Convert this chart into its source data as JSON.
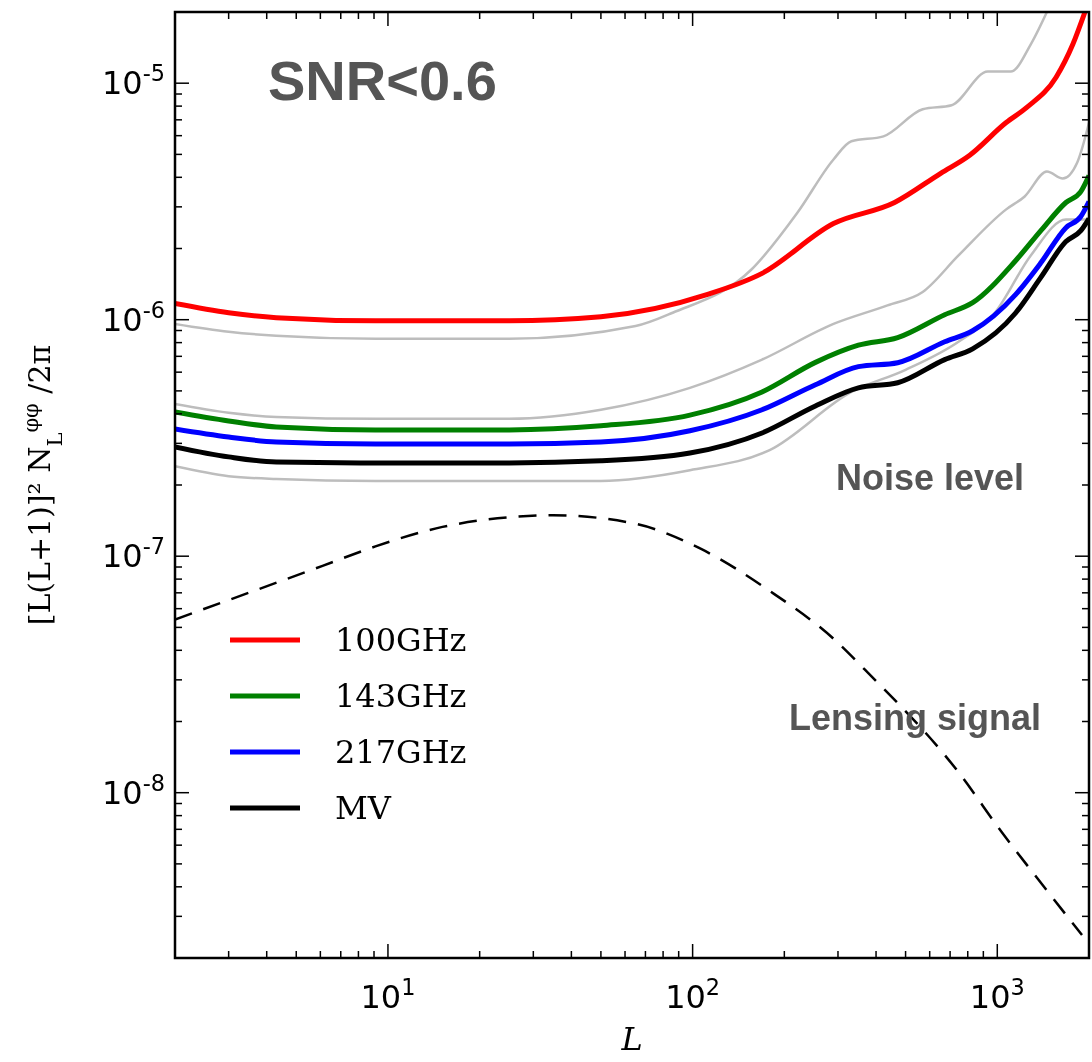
{
  "chart_data": {
    "type": "line",
    "title": "SNR<0.6",
    "xlabel": "L",
    "ylabel": "[L(L+1)]² N$_{L}$$^{φφ}$ /2π",
    "log": "xy",
    "legend": "bottom left",
    "grid": false,
    "marker": "none",
    "xlim": [
      2,
      2000
    ],
    "ylim": [
      2e-09,
      2e-05
    ],
    "xticks": [
      {
        "value": 2,
        "label": null
      },
      {
        "value": 3,
        "label": null
      },
      {
        "value": 4,
        "label": null
      },
      {
        "value": 5,
        "label": null
      },
      {
        "value": 6,
        "label": null
      },
      {
        "value": 7,
        "label": null
      },
      {
        "value": 8,
        "label": null
      },
      {
        "value": 9,
        "label": null
      },
      {
        "value": 10,
        "label": "10$^{1}$"
      },
      {
        "value": 20,
        "label": null
      },
      {
        "value": 30,
        "label": null
      },
      {
        "value": 40,
        "label": null
      },
      {
        "value": 50,
        "label": null
      },
      {
        "value": 60,
        "label": null
      },
      {
        "value": 70,
        "label": null
      },
      {
        "value": 80,
        "label": null
      },
      {
        "value": 90,
        "label": null
      },
      {
        "value": 100,
        "label": "10$^{2}$"
      },
      {
        "value": 200,
        "label": null
      },
      {
        "value": 300,
        "label": null
      },
      {
        "value": 400,
        "label": null
      },
      {
        "value": 500,
        "label": null
      },
      {
        "value": 600,
        "label": null
      },
      {
        "value": 700,
        "label": null
      },
      {
        "value": 800,
        "label": null
      },
      {
        "value": 900,
        "label": null
      },
      {
        "value": 1000,
        "label": "10$^{3}$"
      }
    ],
    "yticks": [
      {
        "value": 3e-09,
        "label": null
      },
      {
        "value": 4e-09,
        "label": null
      },
      {
        "value": 5e-09,
        "label": null
      },
      {
        "value": 6e-09,
        "label": null
      },
      {
        "value": 7e-09,
        "label": null
      },
      {
        "value": 8e-09,
        "label": null
      },
      {
        "value": 9e-09,
        "label": null
      },
      {
        "value": 1e-08,
        "label": "10$^{-8}$"
      },
      {
        "value": 2e-08,
        "label": null
      },
      {
        "value": 3e-08,
        "label": null
      },
      {
        "value": 4e-08,
        "label": null
      },
      {
        "value": 5e-08,
        "label": null
      },
      {
        "value": 6e-08,
        "label": null
      },
      {
        "value": 7e-08,
        "label": null
      },
      {
        "value": 8e-08,
        "label": null
      },
      {
        "value": 9e-08,
        "label": null
      },
      {
        "value": 1e-07,
        "label": "10$^{-7}$"
      },
      {
        "value": 2e-07,
        "label": null
      },
      {
        "value": 3e-07,
        "label": null
      },
      {
        "value": 4e-07,
        "label": null
      },
      {
        "value": 5e-07,
        "label": null
      },
      {
        "value": 6e-07,
        "label": null
      },
      {
        "value": 7e-07,
        "label": null
      },
      {
        "value": 8e-07,
        "label": null
      },
      {
        "value": 9e-07,
        "label": null
      },
      {
        "value": 1e-06,
        "label": "10$^{-6}$"
      },
      {
        "value": 2e-06,
        "label": null
      },
      {
        "value": 3e-06,
        "label": null
      },
      {
        "value": 4e-06,
        "label": null
      },
      {
        "value": 5e-06,
        "label": null
      },
      {
        "value": 6e-06,
        "label": null
      },
      {
        "value": 7e-06,
        "label": null
      },
      {
        "value": 8e-06,
        "label": null
      },
      {
        "value": 9e-06,
        "label": null
      },
      {
        "value": 1e-05,
        "label": "10$^{-5}$"
      }
    ],
    "annotations": [
      "Noise level",
      "Lensing signal"
    ],
    "series": [
      {
        "color": "#bdbdbd",
        "x": [
          2,
          3,
          4.3,
          9.1,
          25,
          65,
          86,
          156,
          221,
          290,
          332,
          423,
          569,
          708,
          931,
          1107,
          1288,
          1455
        ],
        "values": [
          9.6e-07,
          8.9e-07,
          8.55e-07,
          8.3e-07,
          8.3e-07,
          9.4e-07,
          1.07e-06,
          1.63e-06,
          2.84e-06,
          4.76e-06,
          5.68e-06,
          5.96e-06,
          7.76e-06,
          8.07e-06,
          1.12e-05,
          1.12e-05,
          1.46e-05,
          2e-05
        ]
      },
      {
        "color": "#bdbdbd",
        "x": [
          2,
          3,
          4.3,
          9.1,
          25,
          50,
          98,
          169,
          290,
          436,
          569,
          746,
          1067,
          1230,
          1455,
          1640,
          1830,
          2000
        ],
        "values": [
          4.4e-07,
          4.04e-07,
          3.88e-07,
          3.81e-07,
          3.81e-07,
          4.16e-07,
          5.15e-07,
          6.78e-07,
          9.6e-07,
          1.15e-06,
          1.31e-06,
          1.87e-06,
          2.92e-06,
          3.32e-06,
          4.23e-06,
          3.95e-06,
          4.62e-06,
          6.8e-06
        ]
      },
      {
        "color": "#bdbdbd",
        "x": [
          2,
          3,
          4.3,
          9.1,
          25,
          50,
          98,
          179,
          332,
          500,
          746,
          982,
          1288,
          1680,
          2000
        ],
        "values": [
          2.4e-07,
          2.18e-07,
          2.12e-07,
          2.08e-07,
          2.08e-07,
          2.08e-07,
          2.31e-07,
          2.81e-07,
          4.95e-07,
          6.14e-07,
          8.07e-07,
          1.07e-06,
          1.87e-06,
          2.65e-06,
          2.65e-06
        ]
      },
      {
        "name": "100GHz",
        "color": "#ff0000",
        "x": [
          2,
          3,
          4.3,
          9.1,
          25,
          50,
          112,
          169,
          290,
          460,
          652,
          812,
          1067,
          1250,
          1560,
          1770,
          1940
        ],
        "values": [
          1.17e-06,
          1.07e-06,
          1.02e-06,
          9.9e-07,
          9.9e-07,
          1.03e-06,
          1.28e-06,
          1.57e-06,
          2.55e-06,
          3.13e-06,
          4.16e-06,
          4.96e-06,
          6.8e-06,
          7.9e-06,
          1.06e-05,
          1.46e-05,
          2e-05
        ]
      },
      {
        "name": "143GHz",
        "color": "#008000",
        "x": [
          2,
          3,
          4.3,
          9.1,
          25,
          50,
          98,
          169,
          253,
          350,
          471,
          672,
          830,
          1150,
          1390,
          1680,
          1880,
          2000
        ],
        "values": [
          4.07e-07,
          3.73e-07,
          3.52e-07,
          3.42e-07,
          3.42e-07,
          3.56e-07,
          3.95e-07,
          4.95e-07,
          6.6e-07,
          7.8e-07,
          8.4e-07,
          1.05e-06,
          1.18e-06,
          1.78e-06,
          2.38e-06,
          3.13e-06,
          3.48e-06,
          4.07e-06
        ]
      },
      {
        "name": "217GHz",
        "color": "#0000ff",
        "x": [
          2,
          3,
          4.3,
          9.1,
          25,
          50,
          98,
          169,
          253,
          350,
          471,
          672,
          830,
          1150,
          1390,
          1680,
          1880,
          2000
        ],
        "values": [
          3.45e-07,
          3.19e-07,
          3.04e-07,
          2.98e-07,
          2.98e-07,
          3.04e-07,
          3.39e-07,
          4.16e-07,
          5.31e-07,
          6.33e-07,
          6.58e-07,
          8.07e-07,
          8.98e-07,
          1.28e-06,
          1.74e-06,
          2.45e-06,
          2.73e-06,
          3.16e-06
        ]
      },
      {
        "name": "MV",
        "color": "#000000",
        "x": [
          2,
          3,
          4.3,
          9.1,
          25,
          50,
          98,
          169,
          253,
          350,
          471,
          672,
          830,
          1150,
          1390,
          1680,
          1880,
          2000
        ],
        "values": [
          2.9e-07,
          2.63e-07,
          2.5e-07,
          2.48e-07,
          2.48e-07,
          2.53e-07,
          2.73e-07,
          3.32e-07,
          4.32e-07,
          5.15e-07,
          5.41e-07,
          6.78e-07,
          7.53e-07,
          1.07e-06,
          1.51e-06,
          2.14e-06,
          2.38e-06,
          2.68e-06
        ]
      },
      {
        "color": "#000000",
        "line_style": "dashed",
        "x": [
          2,
          6.1,
          9.1,
          15.1,
          24.9,
          34.8,
          65,
          107,
          177,
          292,
          367,
          746,
          1035,
          1476,
          1897
        ],
        "values": [
          5.4e-08,
          9.1e-08,
          1.1e-07,
          1.33e-07,
          1.46e-07,
          1.49e-07,
          1.37e-07,
          1.07e-07,
          7.2e-08,
          4.44e-08,
          3.32e-08,
          1.22e-08,
          6.8e-09,
          3.77e-09,
          2.5e-09
        ]
      }
    ]
  }
}
